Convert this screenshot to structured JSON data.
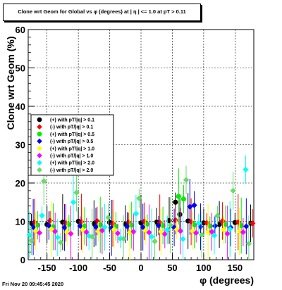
{
  "title": "Clone wrt Geom for Global vs φ (degrees) at | η | <= 1.0 at pT > 0.11",
  "footer": "Fri Nov 20 09:45:45 2020",
  "chart_data": {
    "type": "scatter",
    "title": "Clone wrt Geom for Global vs φ (degrees) at | η | <= 1.0 at pT > 0.11",
    "xlabel": "φ (degrees)",
    "ylabel": "Clone wrt Geom (%)",
    "xlim": [
      -180,
      180
    ],
    "ylim": [
      0,
      60
    ],
    "x_ticks": [
      -150,
      -100,
      -50,
      0,
      50,
      100,
      150
    ],
    "y_ticks": [
      0,
      10,
      20,
      30,
      40,
      50,
      60
    ],
    "grid": true,
    "legend_position": "left-middle",
    "series": [
      {
        "name": "(+) with pT/|q| > 0.1",
        "color": "#000000",
        "x": [
          -175,
          -150,
          -125,
          -100,
          -75,
          -50,
          -25,
          0,
          25,
          45,
          55,
          62,
          75,
          100,
          125,
          150,
          175
        ],
        "y": [
          9.5,
          9.2,
          9.8,
          10.0,
          9.4,
          9.7,
          9.3,
          9.6,
          9.8,
          10.2,
          15.0,
          11.8,
          10.1,
          9.6,
          9.2,
          9.7,
          9.5
        ]
      },
      {
        "name": "(-) with pT/|q| > 0.1",
        "color": "#ff0000",
        "x": [
          -170,
          -145,
          -120,
          -95,
          -70,
          -45,
          -20,
          5,
          30,
          55,
          80,
          105,
          130,
          155,
          178
        ],
        "y": [
          9.8,
          10.2,
          9.6,
          9.9,
          10.1,
          9.5,
          9.8,
          10.0,
          9.7,
          10.3,
          9.9,
          9.6,
          10.1,
          9.8,
          9.5
        ]
      },
      {
        "name": "(+) with pT/|q| > 0.5",
        "color": "#00ee00",
        "x": [
          -165,
          -140,
          -115,
          -90,
          -65,
          -40,
          -15,
          10,
          35,
          60,
          68,
          85,
          110,
          135,
          160
        ],
        "y": [
          9.0,
          8.6,
          9.2,
          8.8,
          9.1,
          8.7,
          9.0,
          9.3,
          8.9,
          16.5,
          15.8,
          9.1,
          8.8,
          9.2,
          8.9
        ]
      },
      {
        "name": "(-) with pT/|q| > 0.5",
        "color": "#0000ff",
        "x": [
          -172,
          -147,
          -122,
          -97,
          -72,
          -47,
          -22,
          3,
          28,
          53,
          78,
          85,
          95,
          118,
          143,
          168
        ],
        "y": [
          8.5,
          8.9,
          8.4,
          8.8,
          8.6,
          8.3,
          8.7,
          8.5,
          8.9,
          8.4,
          13.8,
          14.2,
          8.6,
          8.8,
          8.4,
          8.7
        ]
      },
      {
        "name": "(+) with pT/|q| > 1.0",
        "color": "#ffff00",
        "x": [
          -168,
          -143,
          -118,
          -93,
          -68,
          -43,
          -18,
          7,
          32,
          57,
          82,
          107,
          132,
          157
        ],
        "y": [
          7.5,
          8.0,
          7.2,
          7.8,
          7.4,
          7.9,
          7.1,
          7.6,
          7.3,
          7.9,
          7.5,
          7.2,
          7.8,
          7.4
        ]
      },
      {
        "name": "(-) with pT/|q| > 1.0",
        "color": "#ff00ff",
        "x": [
          -162,
          -137,
          -112,
          -87,
          -62,
          -37,
          -12,
          13,
          38,
          63,
          88,
          113,
          138,
          163
        ],
        "y": [
          7.0,
          7.4,
          6.8,
          7.2,
          7.6,
          6.9,
          7.3,
          7.1,
          6.7,
          7.5,
          7.0,
          7.3,
          6.8,
          7.2
        ]
      },
      {
        "name": "(+) with pT/|q| > 2.0",
        "color": "#00ffff",
        "x": [
          -178,
          -158,
          -133,
          -108,
          -83,
          -58,
          -33,
          -8,
          17,
          42,
          67,
          92,
          117,
          142,
          167
        ],
        "y": [
          6.5,
          11.5,
          5.8,
          15.0,
          6.2,
          8.5,
          5.5,
          12.0,
          6.0,
          7.8,
          5.4,
          9.5,
          6.3,
          8.0,
          23.5
        ]
      },
      {
        "name": "(-) with pT/|q| > 2.0",
        "color": "#66dd66",
        "x": [
          -175,
          -155,
          -128,
          -103,
          -78,
          -52,
          -28,
          -3,
          22,
          47,
          72,
          97,
          122,
          147,
          172
        ],
        "y": [
          5.0,
          20.5,
          4.5,
          17.5,
          6.0,
          11.0,
          5.5,
          16.0,
          4.8,
          9.0,
          20.8,
          6.5,
          11.5,
          18.0,
          4.2
        ]
      }
    ]
  }
}
